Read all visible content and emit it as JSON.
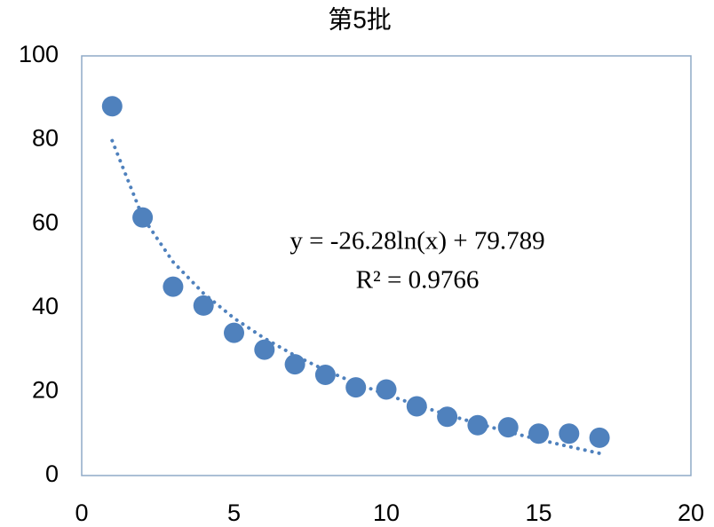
{
  "chart_data": {
    "type": "scatter",
    "title": "第5批",
    "x": [
      1,
      2,
      3,
      4,
      5,
      6,
      7,
      8,
      9,
      10,
      11,
      12,
      13,
      14,
      15,
      16,
      17
    ],
    "values": [
      88,
      61.5,
      45,
      40.5,
      34,
      30,
      26.5,
      24,
      21,
      20.5,
      16.5,
      14,
      12,
      11.5,
      10,
      10,
      9
    ],
    "color": "#4f81bd",
    "trendline": {
      "x": [
        1,
        2,
        3,
        4,
        5,
        6,
        7,
        8,
        9,
        10,
        11,
        12,
        13,
        14,
        15,
        16,
        17
      ],
      "values": [
        79.8,
        61.6,
        50.9,
        43.4,
        37.5,
        32.7,
        28.6,
        25.1,
        22.0,
        19.3,
        16.8,
        14.5,
        12.4,
        10.4,
        8.6,
        6.9,
        5.3
      ],
      "color": "#4f81bd"
    },
    "annotations": [
      "y = -26.28ln(x) + 79.789",
      "R² = 0.9766"
    ],
    "xlim": [
      0,
      20
    ],
    "xticks": [
      0,
      5,
      10,
      15,
      20
    ],
    "ylim": [
      0,
      100
    ],
    "yticks": [
      0,
      20,
      40,
      60,
      80,
      100
    ]
  }
}
